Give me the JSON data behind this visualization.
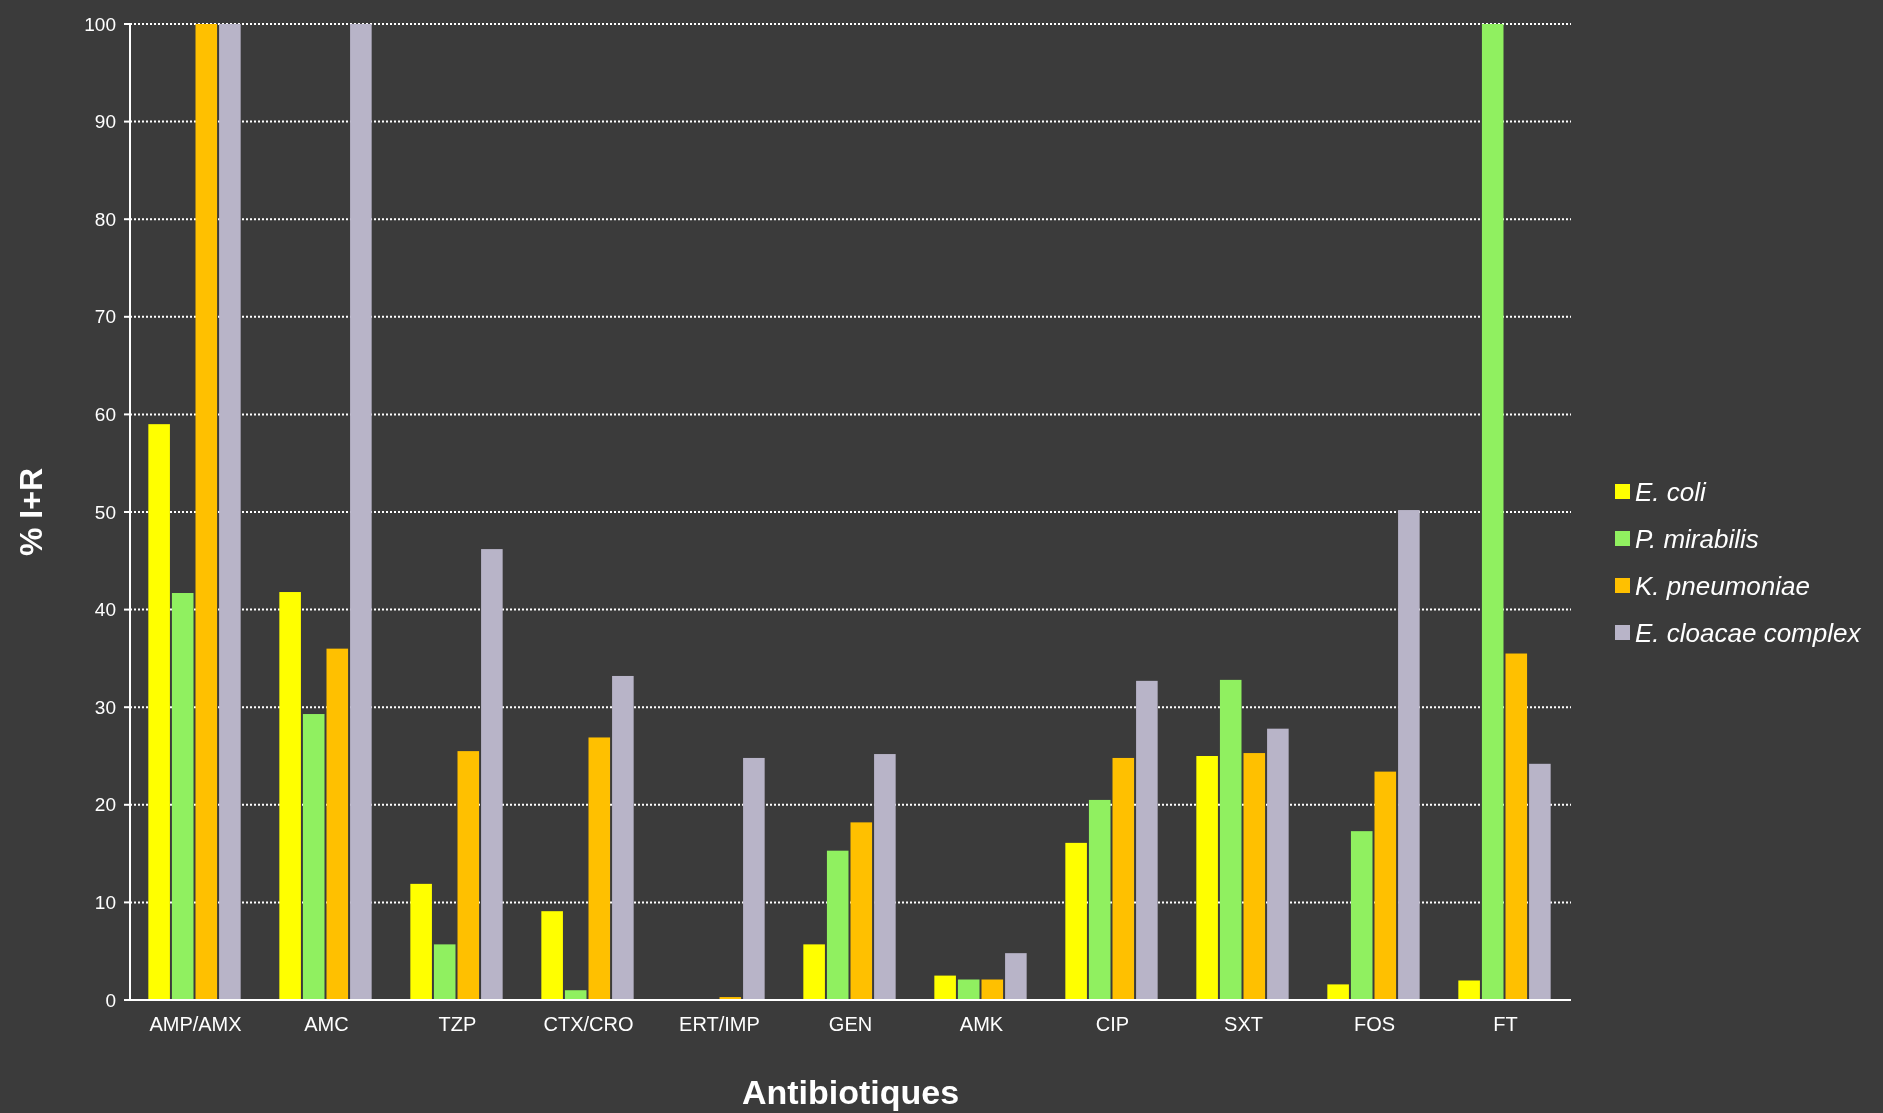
{
  "chart_data": {
    "type": "bar",
    "xlabel": "Antibiotiques",
    "ylabel": "% I+R",
    "categories": [
      "AMP/AMX",
      "AMC",
      "TZP",
      "CTX/CRO",
      "ERT/IMP",
      "GEN",
      "AMK",
      "CIP",
      "SXT",
      "FOS",
      "FT"
    ],
    "series": [
      {
        "name": "E. coli",
        "color": "#ffff00",
        "values": [
          59,
          41.8,
          11.9,
          9.1,
          0,
          5.7,
          2.5,
          16.1,
          25,
          1.6,
          2
        ]
      },
      {
        "name": "P. mirabilis",
        "color": "#90f060",
        "values": [
          41.7,
          29.3,
          5.7,
          1,
          0,
          15.3,
          2.1,
          20.5,
          32.8,
          17.3,
          100
        ]
      },
      {
        "name": "K. pneumoniae",
        "color": "#ffc000",
        "values": [
          100,
          36,
          25.5,
          26.9,
          0.3,
          18.2,
          2.1,
          24.8,
          25.3,
          23.4,
          35.5
        ]
      },
      {
        "name": "E. cloacae complex",
        "color": "#b8b4c8",
        "values": [
          100,
          100,
          46.2,
          33.2,
          24.8,
          25.2,
          4.8,
          32.7,
          27.8,
          50.2,
          24.2
        ]
      }
    ],
    "ylim": [
      0,
      100
    ],
    "yticks": [
      0,
      10,
      20,
      30,
      40,
      50,
      60,
      70,
      80,
      90,
      100
    ],
    "grid": "y",
    "legend": "right"
  }
}
